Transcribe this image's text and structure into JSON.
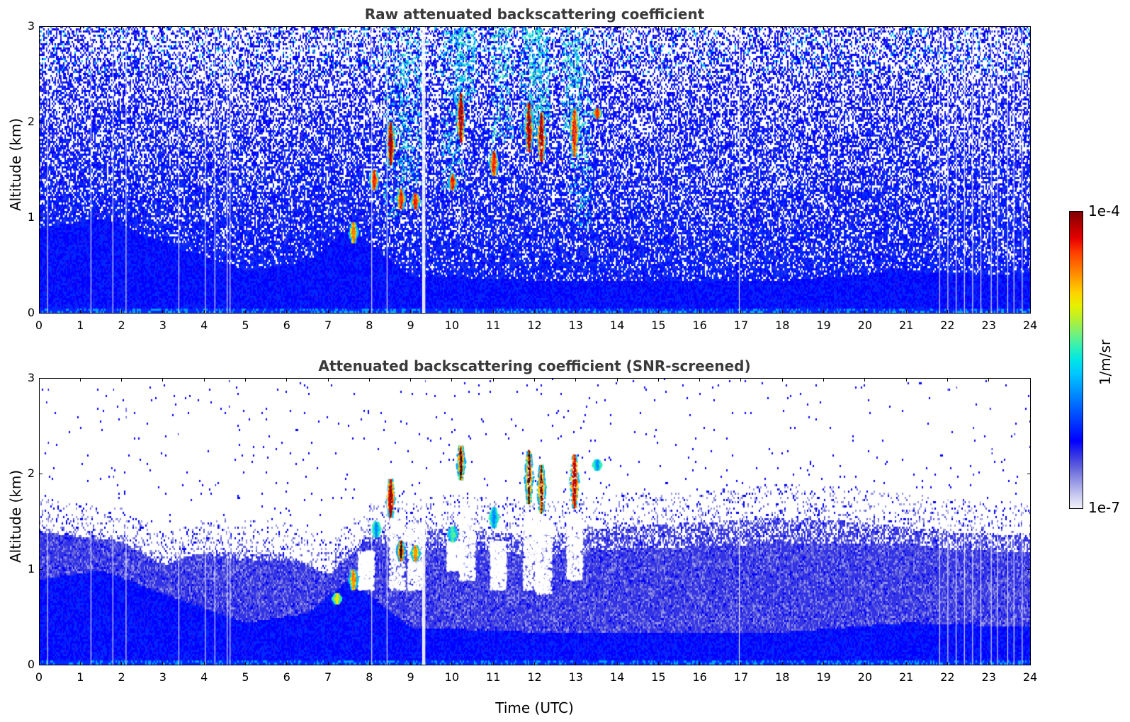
{
  "chart_data": [
    {
      "type": "heatmap",
      "title": "Raw attenuated backscattering coefficient",
      "xlabel": "",
      "ylabel": "Altitude (km)",
      "xlim": [
        0,
        24
      ],
      "ylim": [
        0,
        3
      ],
      "xticks": [
        0,
        1,
        2,
        3,
        4,
        5,
        6,
        7,
        8,
        9,
        10,
        11,
        12,
        13,
        14,
        15,
        16,
        17,
        18,
        19,
        20,
        21,
        22,
        23,
        24
      ],
      "xtick_labels": [
        "0",
        "1",
        "2",
        "3",
        "4",
        "5",
        "6",
        "7",
        "8",
        "9",
        "10",
        "11",
        "12",
        "13",
        "14",
        "15",
        "16",
        "17",
        "18",
        "19",
        "20",
        "21",
        "22",
        "23",
        "24"
      ],
      "yticks": [
        0,
        1,
        2,
        3
      ],
      "ytick_labels": [
        "0",
        "1",
        "2",
        "3"
      ],
      "screened": false,
      "boundary_layer_km": [
        [
          0,
          0.9
        ],
        [
          1.5,
          1.0
        ],
        [
          3,
          0.75
        ],
        [
          5,
          0.45
        ],
        [
          6.5,
          0.55
        ],
        [
          7.5,
          0.9
        ],
        [
          9,
          0.4
        ],
        [
          12,
          0.35
        ],
        [
          15,
          0.35
        ],
        [
          18,
          0.35
        ],
        [
          21,
          0.45
        ],
        [
          24,
          0.4
        ]
      ],
      "gap_lines_utc": [
        0.2,
        1.25,
        1.78,
        2.1,
        3.38,
        4.02,
        4.25,
        4.55,
        4.62,
        8.05,
        8.42,
        9.28,
        9.32,
        16.95,
        21.8,
        22.0,
        22.2,
        22.4,
        22.6,
        22.8,
        23.05,
        23.2,
        23.45,
        23.6,
        23.8
      ],
      "clouds": [
        {
          "time_utc": 7.6,
          "base_km": 0.75,
          "top_km": 0.95,
          "peak": "orange"
        },
        {
          "time_utc": 8.1,
          "base_km": 1.3,
          "top_km": 1.5,
          "peak": "red"
        },
        {
          "time_utc": 8.5,
          "base_km": 1.55,
          "top_km": 2.0,
          "peak": "darkred"
        },
        {
          "time_utc": 8.75,
          "base_km": 1.1,
          "top_km": 1.3,
          "peak": "red"
        },
        {
          "time_utc": 9.1,
          "base_km": 1.1,
          "top_km": 1.25,
          "peak": "red"
        },
        {
          "time_utc": 10.0,
          "base_km": 1.3,
          "top_km": 1.45,
          "peak": "red"
        },
        {
          "time_utc": 10.2,
          "base_km": 1.8,
          "top_km": 2.3,
          "peak": "darkred"
        },
        {
          "time_utc": 11.0,
          "base_km": 1.45,
          "top_km": 1.7,
          "peak": "red"
        },
        {
          "time_utc": 11.85,
          "base_km": 1.7,
          "top_km": 2.2,
          "peak": "darkred"
        },
        {
          "time_utc": 12.15,
          "base_km": 1.6,
          "top_km": 2.1,
          "peak": "darkred"
        },
        {
          "time_utc": 12.95,
          "base_km": 1.65,
          "top_km": 2.15,
          "peak": "red"
        },
        {
          "time_utc": 13.5,
          "base_km": 2.05,
          "top_km": 2.15,
          "peak": "red"
        }
      ]
    },
    {
      "type": "heatmap",
      "title": "Attenuated backscattering coefficient (SNR-screened)",
      "xlabel": "Time (UTC)",
      "ylabel": "Altitude (km)",
      "xlim": [
        0,
        24
      ],
      "ylim": [
        0,
        3
      ],
      "xticks": [
        0,
        1,
        2,
        3,
        4,
        5,
        6,
        7,
        8,
        9,
        10,
        11,
        12,
        13,
        14,
        15,
        16,
        17,
        18,
        19,
        20,
        21,
        22,
        23,
        24
      ],
      "xtick_labels": [
        "0",
        "1",
        "2",
        "3",
        "4",
        "5",
        "6",
        "7",
        "8",
        "9",
        "10",
        "11",
        "12",
        "13",
        "14",
        "15",
        "16",
        "17",
        "18",
        "19",
        "20",
        "21",
        "22",
        "23",
        "24"
      ],
      "yticks": [
        0,
        1,
        2,
        3
      ],
      "ytick_labels": [
        "0",
        "1",
        "2",
        "3"
      ],
      "screened": true,
      "signal_top_km": [
        [
          0,
          1.75
        ],
        [
          2,
          1.65
        ],
        [
          3,
          1.4
        ],
        [
          4,
          1.55
        ],
        [
          6,
          1.5
        ],
        [
          7,
          1.3
        ],
        [
          8,
          1.7
        ],
        [
          10,
          1.8
        ],
        [
          12,
          1.7
        ],
        [
          14,
          1.8
        ],
        [
          16,
          1.85
        ],
        [
          18,
          1.9
        ],
        [
          20,
          1.85
        ],
        [
          22,
          1.75
        ],
        [
          24,
          1.7
        ]
      ],
      "boundary_layer_km": [
        [
          0,
          0.9
        ],
        [
          1.5,
          1.0
        ],
        [
          3,
          0.75
        ],
        [
          5,
          0.45
        ],
        [
          6.5,
          0.55
        ],
        [
          7.5,
          0.9
        ],
        [
          9,
          0.4
        ],
        [
          12,
          0.35
        ],
        [
          15,
          0.35
        ],
        [
          18,
          0.35
        ],
        [
          21,
          0.45
        ],
        [
          24,
          0.4
        ]
      ],
      "gap_lines_utc": [
        0.2,
        1.25,
        1.78,
        2.1,
        3.38,
        4.02,
        4.25,
        4.55,
        4.62,
        8.05,
        8.42,
        9.28,
        9.32,
        16.95,
        21.8,
        22.0,
        22.2,
        22.4,
        22.6,
        22.8,
        23.05,
        23.2,
        23.45,
        23.6,
        23.8
      ],
      "clouds": [
        {
          "time_utc": 7.2,
          "base_km": 0.65,
          "top_km": 0.75,
          "peak": "yellow"
        },
        {
          "time_utc": 7.6,
          "base_km": 0.8,
          "top_km": 1.0,
          "peak": "orange"
        },
        {
          "time_utc": 8.15,
          "base_km": 1.35,
          "top_km": 1.5,
          "peak": "blue"
        },
        {
          "time_utc": 8.5,
          "base_km": 1.55,
          "top_km": 1.95,
          "peak": "darkred"
        },
        {
          "time_utc": 8.75,
          "base_km": 1.1,
          "top_km": 1.3,
          "peak": "black"
        },
        {
          "time_utc": 9.1,
          "base_km": 1.1,
          "top_km": 1.25,
          "peak": "orange"
        },
        {
          "time_utc": 10.0,
          "base_km": 1.3,
          "top_km": 1.45,
          "peak": "green"
        },
        {
          "time_utc": 10.2,
          "base_km": 1.95,
          "top_km": 2.3,
          "peak": "black"
        },
        {
          "time_utc": 11.0,
          "base_km": 1.45,
          "top_km": 1.65,
          "peak": "blue"
        },
        {
          "time_utc": 11.85,
          "base_km": 1.7,
          "top_km": 2.25,
          "peak": "black"
        },
        {
          "time_utc": 12.15,
          "base_km": 1.6,
          "top_km": 2.1,
          "peak": "black"
        },
        {
          "time_utc": 12.95,
          "base_km": 1.65,
          "top_km": 2.2,
          "peak": "darkred"
        },
        {
          "time_utc": 13.5,
          "base_km": 2.05,
          "top_km": 2.15,
          "peak": "blue"
        }
      ]
    }
  ],
  "colorbar": {
    "label": "1/m/sr",
    "max_label": "1e-4",
    "min_label": "1e-7",
    "scale": "log",
    "range": [
      1e-07,
      0.0001
    ],
    "colormap": "jet",
    "colors": [
      "#f0f0fa",
      "#c8c8f0",
      "#9696e6",
      "#6464dc",
      "#3232e6",
      "#0000ff",
      "#0028ff",
      "#0050ff",
      "#0078ff",
      "#00a0ff",
      "#00c8ff",
      "#00e6e6",
      "#32f0b4",
      "#78f078",
      "#b4f032",
      "#e6f000",
      "#ffd200",
      "#ffa000",
      "#ff6e00",
      "#ff3c00",
      "#e60000",
      "#b40000",
      "#800000"
    ]
  }
}
